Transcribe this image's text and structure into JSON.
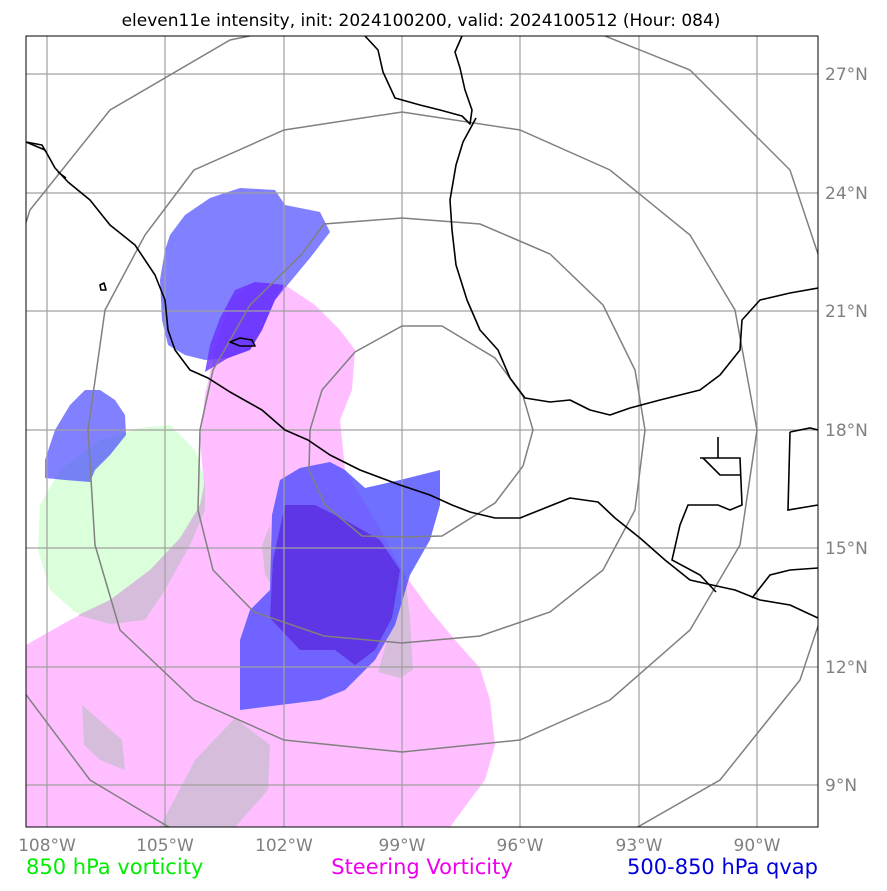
{
  "title": "eleven11e intensity, init: 2024100200, valid: 2024100512 (Hour: 084)",
  "map": {
    "lon_range": [
      -108.5,
      -88.5
    ],
    "lat_range": [
      8,
      28
    ],
    "lon_ticks": [
      {
        "value": -108,
        "label": "108°W"
      },
      {
        "value": -105,
        "label": "105°W"
      },
      {
        "value": -102,
        "label": "102°W"
      },
      {
        "value": -99,
        "label": "99°W"
      },
      {
        "value": -96,
        "label": "96°W"
      },
      {
        "value": -93,
        "label": "93°W"
      },
      {
        "value": -90,
        "label": "90°W"
      }
    ],
    "lat_ticks": [
      {
        "value": 27,
        "label": "27°N"
      },
      {
        "value": 24,
        "label": "24°N"
      },
      {
        "value": 21,
        "label": "21°N"
      },
      {
        "value": 18,
        "label": "18°N"
      },
      {
        "value": 15,
        "label": "15°N"
      },
      {
        "value": 12,
        "label": "12°N"
      },
      {
        "value": 9,
        "label": "9°N"
      }
    ],
    "range_rings_center": {
      "lon": -99,
      "lat": 18.5
    },
    "range_rings_radius_deg": [
      3.0,
      6.0,
      9.0,
      12.0
    ],
    "colors": {
      "grid": "#a0a0a0",
      "rings": "#808080",
      "vorticity_850": "#ccffcc",
      "steering_vorticity": "#ffb3ff",
      "qvap": "#4c4cff"
    }
  },
  "legend": {
    "vorticity_850": {
      "label": "850 hPa vorticity",
      "color": "#00ee00"
    },
    "steering": {
      "label": "Steering Vorticity",
      "color": "#ee00ee"
    },
    "qvap": {
      "label": "500-850 hPa qvap",
      "color": "#0000dd"
    }
  }
}
